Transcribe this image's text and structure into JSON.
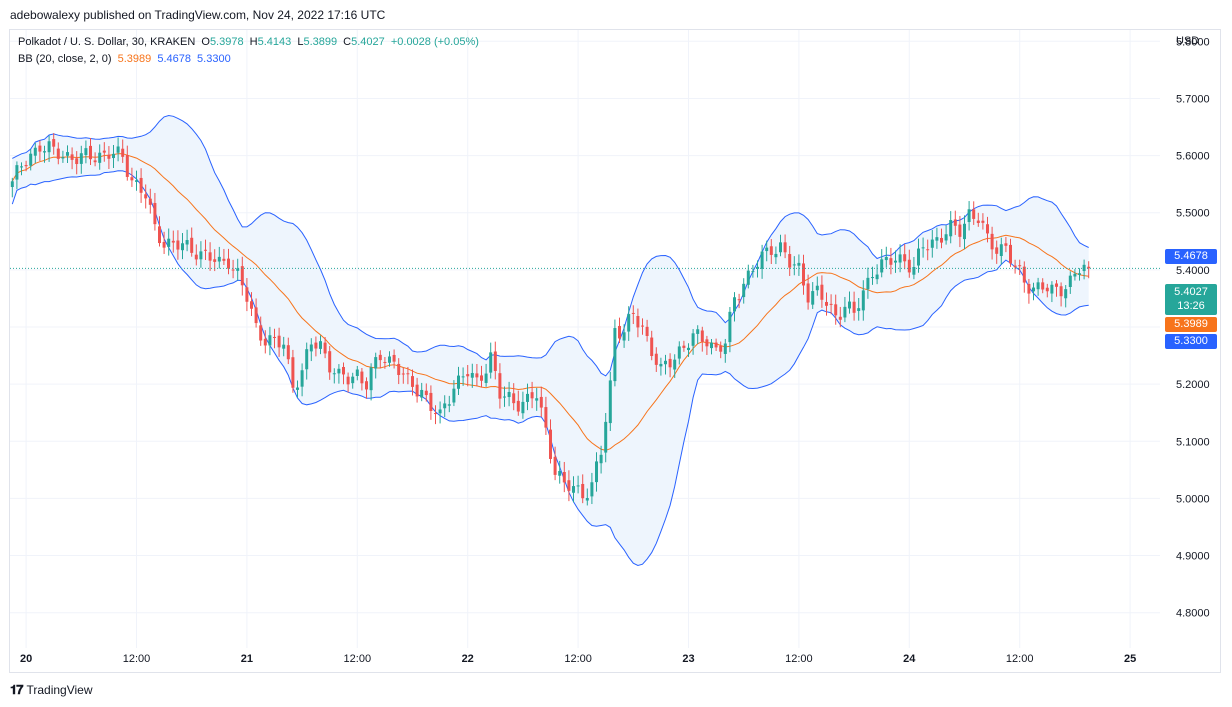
{
  "header": {
    "published_by": "adebowalexy published on TradingView.com, Nov 24, 2022 17:16 UTC"
  },
  "legend": {
    "symbol": "Polkadot / U. S. Dollar, 30, KRAKEN",
    "o_label": "O",
    "o_value": "5.3978",
    "h_label": "H",
    "h_value": "5.4143",
    "l_label": "L",
    "l_value": "5.3899",
    "c_label": "C",
    "c_value": "5.4027",
    "change": "+0.0028 (+0.05%)",
    "bb_label": "BB (20, close, 2, 0)",
    "bb_basis": "5.3989",
    "bb_upper": "5.4678",
    "bb_lower": "5.3300"
  },
  "price_axis": {
    "currency": "USD"
  },
  "footer": {
    "brand": "TradingView"
  },
  "price_tags": {
    "upper": "5.4678",
    "last": "5.4027",
    "countdown": "13:26",
    "basis": "5.3989",
    "lower": "5.3300"
  },
  "colors": {
    "up": "#26a69a",
    "down": "#ef5350",
    "basis": "#f7741b",
    "band": "#2962ff",
    "band_fill": "#eef5fd",
    "grid": "#f0f3fa"
  },
  "chart_data": {
    "type": "candlestick",
    "symbol": "Polkadot / U. S. Dollar",
    "timeframe": "30",
    "exchange": "KRAKEN",
    "ylim": [
      4.77,
      5.86
    ],
    "y_ticks": [
      "5.8000",
      "5.7000",
      "5.6000",
      "5.5000",
      "5.4000",
      "5.3000",
      "5.2000",
      "5.1000",
      "5.0000",
      "4.9000",
      "4.8000"
    ],
    "x_ticks": [
      {
        "label": "20",
        "bar": 3
      },
      {
        "label": "12:00",
        "bar": 27
      },
      {
        "label": "21",
        "bar": 51
      },
      {
        "label": "12:00",
        "bar": 75
      },
      {
        "label": "22",
        "bar": 99
      },
      {
        "label": "12:00",
        "bar": 123
      },
      {
        "label": "23",
        "bar": 147
      },
      {
        "label": "12:00",
        "bar": 171
      },
      {
        "label": "24",
        "bar": 195
      },
      {
        "label": "12:00",
        "bar": 219
      },
      {
        "label": "25",
        "bar": 243
      }
    ],
    "total_slots": 250,
    "close_anchors": [
      [
        0,
        5.555
      ],
      [
        3,
        5.59
      ],
      [
        6,
        5.62
      ],
      [
        9,
        5.605
      ],
      [
        12,
        5.6
      ],
      [
        15,
        5.595
      ],
      [
        18,
        5.6
      ],
      [
        21,
        5.605
      ],
      [
        24,
        5.595
      ],
      [
        26,
        5.56
      ],
      [
        29,
        5.53
      ],
      [
        31,
        5.47
      ],
      [
        33,
        5.45
      ],
      [
        37,
        5.44
      ],
      [
        40,
        5.435
      ],
      [
        43,
        5.42
      ],
      [
        45,
        5.41
      ],
      [
        47,
        5.42
      ],
      [
        49,
        5.39
      ],
      [
        51,
        5.35
      ],
      [
        53,
        5.3
      ],
      [
        55,
        5.28
      ],
      [
        57,
        5.27
      ],
      [
        59,
        5.27
      ],
      [
        61,
        5.2
      ],
      [
        63,
        5.22
      ],
      [
        65,
        5.27
      ],
      [
        67,
        5.27
      ],
      [
        69,
        5.235
      ],
      [
        71,
        5.21
      ],
      [
        73,
        5.21
      ],
      [
        75,
        5.22
      ],
      [
        77,
        5.2
      ],
      [
        80,
        5.25
      ],
      [
        83,
        5.24
      ],
      [
        86,
        5.2
      ],
      [
        89,
        5.19
      ],
      [
        91,
        5.16
      ],
      [
        93,
        5.14
      ],
      [
        96,
        5.2
      ],
      [
        99,
        5.22
      ],
      [
        101,
        5.2
      ],
      [
        104,
        5.25
      ],
      [
        106,
        5.18
      ],
      [
        109,
        5.17
      ],
      [
        112,
        5.17
      ],
      [
        114,
        5.18
      ],
      [
        116,
        5.12
      ],
      [
        118,
        5.05
      ],
      [
        120,
        5.02
      ],
      [
        122,
        5.02
      ],
      [
        124,
        5.01
      ],
      [
        126,
        5.02
      ],
      [
        128,
        5.08
      ],
      [
        130,
        5.2
      ],
      [
        131,
        5.3
      ],
      [
        133,
        5.29
      ],
      [
        135,
        5.32
      ],
      [
        137,
        5.3
      ],
      [
        139,
        5.26
      ],
      [
        141,
        5.22
      ],
      [
        143,
        5.24
      ],
      [
        145,
        5.26
      ],
      [
        148,
        5.28
      ],
      [
        151,
        5.28
      ],
      [
        153,
        5.26
      ],
      [
        155,
        5.27
      ],
      [
        157,
        5.35
      ],
      [
        159,
        5.38
      ],
      [
        161,
        5.4
      ],
      [
        163,
        5.42
      ],
      [
        165,
        5.44
      ],
      [
        167,
        5.44
      ],
      [
        169,
        5.41
      ],
      [
        171,
        5.4
      ],
      [
        173,
        5.36
      ],
      [
        175,
        5.36
      ],
      [
        177,
        5.34
      ],
      [
        179,
        5.32
      ],
      [
        181,
        5.34
      ],
      [
        183,
        5.32
      ],
      [
        185,
        5.36
      ],
      [
        187,
        5.4
      ],
      [
        190,
        5.41
      ],
      [
        192,
        5.42
      ],
      [
        194,
        5.42
      ],
      [
        196,
        5.4
      ],
      [
        198,
        5.44
      ],
      [
        200,
        5.45
      ],
      [
        202,
        5.46
      ],
      [
        204,
        5.47
      ],
      [
        206,
        5.47
      ],
      [
        208,
        5.5
      ],
      [
        210,
        5.49
      ],
      [
        212,
        5.45
      ],
      [
        214,
        5.44
      ],
      [
        216,
        5.44
      ],
      [
        218,
        5.4
      ],
      [
        220,
        5.38
      ],
      [
        222,
        5.37
      ],
      [
        224,
        5.37
      ],
      [
        226,
        5.36
      ],
      [
        228,
        5.37
      ],
      [
        230,
        5.38
      ],
      [
        232,
        5.4
      ],
      [
        234,
        5.403
      ]
    ],
    "last_close": 5.4027,
    "bollinger": {
      "length": 20,
      "source": "close",
      "stddev": 2,
      "offset": 0
    }
  }
}
